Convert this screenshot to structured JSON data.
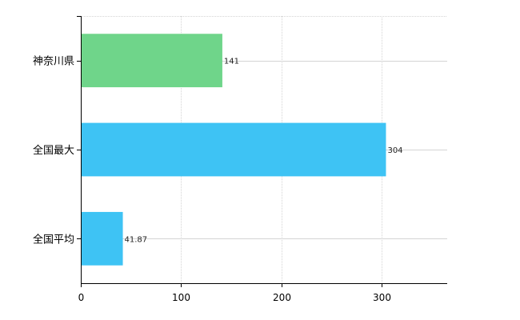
{
  "chart_data": {
    "type": "bar",
    "orientation": "horizontal",
    "categories": [
      "神奈川県",
      "全国最大",
      "全国平均"
    ],
    "values": [
      141,
      304,
      41.87
    ],
    "data_labels": [
      "141",
      "304",
      "41.87"
    ],
    "colors": [
      "#6fd58a",
      "#3ec3f4",
      "#3ec3f4"
    ],
    "xlim": [
      0,
      365
    ],
    "x_ticks": [
      0,
      100,
      200,
      300
    ],
    "x_tick_labels": [
      "0",
      "100",
      "200",
      "300"
    ],
    "grid": true,
    "legend": "none",
    "title": "",
    "xlabel": "",
    "ylabel": ""
  }
}
